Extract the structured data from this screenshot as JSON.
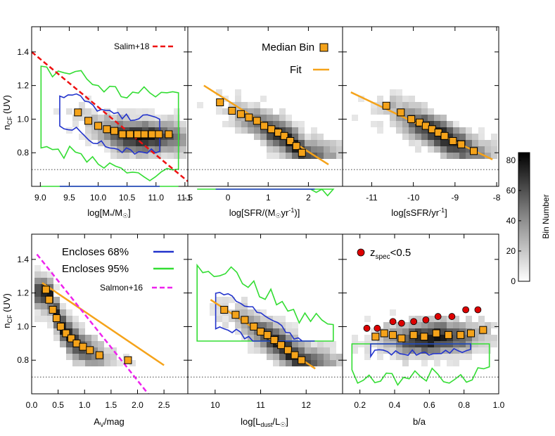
{
  "figure": {
    "colorbar": {
      "label": "Bin Number",
      "ticks": [
        0,
        20,
        40,
        60,
        80
      ],
      "range": [
        0,
        85
      ]
    },
    "legend_top_middle": [
      {
        "label": "Median Bin",
        "marker": "orange-square"
      },
      {
        "label": "Fit",
        "marker": "orange-line"
      }
    ],
    "legend_bottom_left": [
      {
        "label": "Encloses 68%",
        "color": "#2233cc"
      },
      {
        "label": "Encloses 95%",
        "color": "#33dd33"
      },
      {
        "label": "Salmon+16",
        "color": "#ee22ee",
        "style": "dashed"
      }
    ],
    "legend_top_left": {
      "label": "Salim+18",
      "color": "#ee1111",
      "style": "dashed"
    },
    "legend_bottom_right": {
      "prefix": "z",
      "subscript": "spec",
      "suffix": "<0.5",
      "color": "#dd0000"
    }
  },
  "chart_data": [
    {
      "type": "scatter",
      "panel": "top-left",
      "xlabel": "log[M*/M☉]",
      "ylabel": "nCF (UV)",
      "xlim": [
        8.85,
        11.55
      ],
      "ylim": [
        0.6,
        1.55
      ],
      "xticks": [
        9.0,
        9.5,
        10.0,
        10.5,
        11.0,
        11.5
      ],
      "yticks": [
        0.8,
        1.0,
        1.2,
        1.4
      ],
      "reference_y": 0.7,
      "median_bins": {
        "x": [
          9.65,
          9.83,
          10.0,
          10.15,
          10.28,
          10.42,
          10.55,
          10.68,
          10.8,
          10.93,
          11.05,
          11.22
        ],
        "y": [
          1.04,
          0.99,
          0.96,
          0.94,
          0.93,
          0.91,
          0.91,
          0.91,
          0.91,
          0.91,
          0.91,
          0.91
        ]
      },
      "reference_line": {
        "label": "Salim+18",
        "x": [
          8.85,
          11.55
        ],
        "y": [
          1.4,
          0.63
        ]
      },
      "density_center": [
        10.7,
        0.88
      ]
    },
    {
      "type": "scatter",
      "panel": "top-middle",
      "xlabel": "log[SFR/(M☉yr-1)]",
      "xlim": [
        -1.0,
        2.85
      ],
      "ylim": [
        0.6,
        1.55
      ],
      "xticks": [
        -1,
        0,
        1,
        2
      ],
      "yticks": [
        0.8,
        1.0,
        1.2,
        1.4
      ],
      "reference_y": 0.7,
      "median_bins": {
        "x": [
          -0.2,
          0.1,
          0.32,
          0.52,
          0.72,
          0.9,
          1.08,
          1.25,
          1.4,
          1.55,
          1.7,
          1.84
        ],
        "y": [
          1.1,
          1.05,
          1.03,
          1.01,
          0.99,
          0.96,
          0.94,
          0.92,
          0.9,
          0.87,
          0.84,
          0.8
        ]
      },
      "fit": {
        "x": [
          -0.6,
          2.5
        ],
        "y": [
          1.2,
          0.73
        ]
      },
      "density_center": [
        1.4,
        0.85
      ]
    },
    {
      "type": "scatter",
      "panel": "top-right",
      "xlabel": "log[sSFR/yr-1]",
      "xlim": [
        -11.7,
        -7.95
      ],
      "ylim": [
        0.6,
        1.55
      ],
      "xticks": [
        -11,
        -10,
        -9,
        -8
      ],
      "yticks": [
        0.8,
        1.0,
        1.2,
        1.4
      ],
      "reference_y": 0.7,
      "median_bins": {
        "x": [
          -10.65,
          -10.3,
          -10.05,
          -9.85,
          -9.7,
          -9.55,
          -9.4,
          -9.25,
          -9.05,
          -8.85,
          -8.55
        ],
        "y": [
          1.08,
          1.04,
          1.0,
          0.98,
          0.96,
          0.94,
          0.92,
          0.9,
          0.87,
          0.85,
          0.81
        ]
      },
      "fit": {
        "x": [
          -11.5,
          -8.1
        ],
        "y": [
          1.16,
          0.76
        ]
      },
      "density_center": [
        -9.4,
        0.88
      ]
    },
    {
      "type": "scatter",
      "panel": "bottom-left",
      "xlabel": "AV/mag",
      "ylabel": "nCF (UV)",
      "xlim": [
        0.0,
        2.95
      ],
      "ylim": [
        0.6,
        1.55
      ],
      "xticks": [
        0.0,
        0.5,
        1.0,
        1.5,
        2.0,
        2.5
      ],
      "yticks": [
        0.8,
        1.0,
        1.2,
        1.4
      ],
      "reference_y": 0.7,
      "median_bins": {
        "x": [
          0.27,
          0.33,
          0.4,
          0.47,
          0.55,
          0.65,
          0.75,
          0.85,
          0.97,
          1.1,
          1.28,
          1.82
        ],
        "y": [
          1.22,
          1.16,
          1.1,
          1.05,
          1.0,
          0.96,
          0.93,
          0.9,
          0.88,
          0.86,
          0.83,
          0.8
        ]
      },
      "fit": {
        "x": [
          0.2,
          2.5
        ],
        "y": [
          1.26,
          0.77
        ]
      },
      "reference_line": {
        "label": "Salmon+16",
        "x": [
          0.1,
          2.2
        ],
        "y": [
          1.43,
          0.6
        ]
      },
      "density_center": [
        0.45,
        1.02
      ]
    },
    {
      "type": "scatter",
      "panel": "bottom-middle",
      "xlabel": "log[Ldust/L☉]",
      "xlim": [
        9.4,
        12.8
      ],
      "ylim": [
        0.6,
        1.55
      ],
      "xticks": [
        10,
        11,
        12
      ],
      "yticks": [
        0.8,
        1.0,
        1.2,
        1.4
      ],
      "reference_y": 0.7,
      "median_bins": {
        "x": [
          10.2,
          10.45,
          10.65,
          10.85,
          11.0,
          11.15,
          11.3,
          11.45,
          11.6,
          11.75,
          11.9
        ],
        "y": [
          1.1,
          1.07,
          1.04,
          1.0,
          0.97,
          0.95,
          0.92,
          0.89,
          0.86,
          0.83,
          0.8
        ]
      },
      "fit": {
        "x": [
          9.9,
          12.2
        ],
        "y": [
          1.16,
          0.75
        ]
      },
      "density_center": [
        11.5,
        0.88
      ]
    },
    {
      "type": "scatter",
      "panel": "bottom-right",
      "xlabel": "b/a",
      "xlim": [
        0.1,
        1.0
      ],
      "ylim": [
        0.6,
        1.55
      ],
      "xticks": [
        0.2,
        0.4,
        0.6,
        0.8,
        1.0
      ],
      "yticks": [
        0.8,
        1.0,
        1.2,
        1.4
      ],
      "reference_y": 0.7,
      "median_bins": {
        "x": [
          0.29,
          0.34,
          0.39,
          0.44,
          0.51,
          0.57,
          0.64,
          0.71,
          0.78,
          0.84,
          0.91
        ],
        "y": [
          0.94,
          0.96,
          0.95,
          0.93,
          0.95,
          0.94,
          0.96,
          0.95,
          0.95,
          0.96,
          0.98
        ]
      },
      "zspec_points": {
        "x": [
          0.24,
          0.3,
          0.39,
          0.44,
          0.51,
          0.58,
          0.65,
          0.73,
          0.81,
          0.88
        ],
        "y": [
          0.99,
          0.99,
          1.03,
          1.02,
          1.03,
          1.04,
          1.06,
          1.06,
          1.1,
          1.1
        ]
      },
      "density_center": [
        0.6,
        0.92
      ]
    }
  ]
}
